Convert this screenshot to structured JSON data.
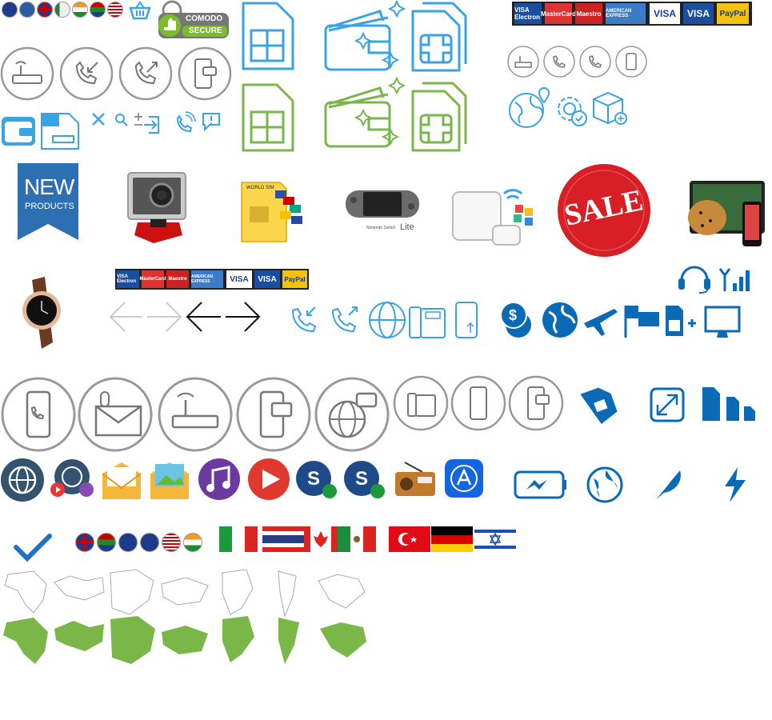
{
  "security_badge": {
    "brand": "COMODO",
    "label": "SECURE"
  },
  "payment_cards": [
    "VISA Electron",
    "MasterCard",
    "Maestro",
    "AMERICAN EXPRESS",
    "VISA",
    "VISA",
    "PayPal"
  ],
  "new_products": {
    "line1": "NEW",
    "line2": "PRODUCTS"
  },
  "sale_badge": "SALE",
  "nintendo": {
    "brand": "Nintendo Switch",
    "model": "Lite"
  },
  "simcard_pack": "WORLD SIM",
  "colors": {
    "blue": "#3aa3e3",
    "green": "#7ab648",
    "gray": "#8a8a8a",
    "dark_blue": "#0a6ab6",
    "red": "#d22"
  }
}
